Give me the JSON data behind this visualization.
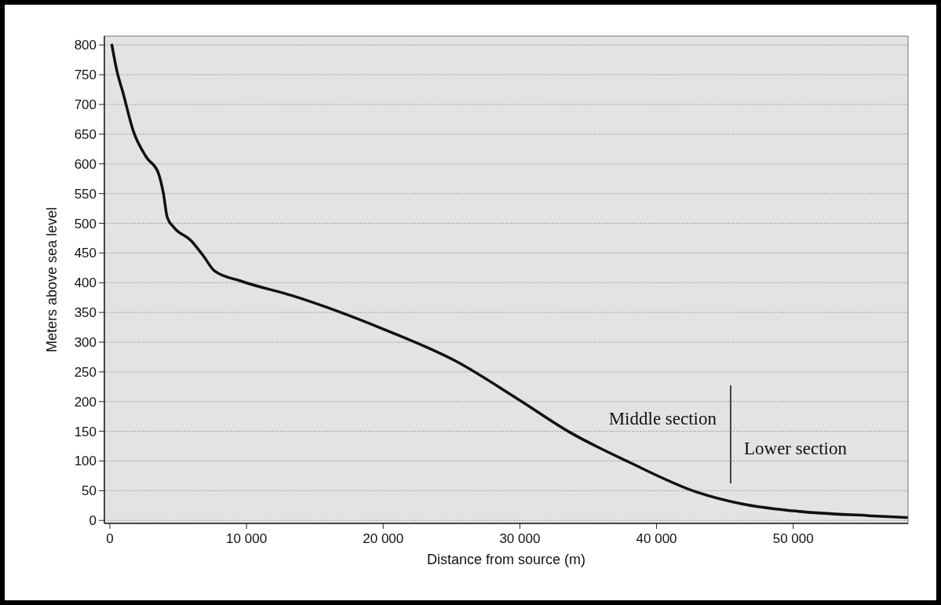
{
  "chart_data": {
    "type": "line",
    "xlabel": "Distance from source (m)",
    "ylabel": "Meters above sea level",
    "x": [
      150,
      500,
      960,
      1720,
      2680,
      3540,
      3920,
      4200,
      4690,
      5930,
      6880,
      7650,
      9560,
      13370,
      20000,
      25400,
      29800,
      33600,
      38000,
      42900,
      46200,
      50000,
      55500,
      58300
    ],
    "series": [
      {
        "color": "#111111",
        "values": [
          800,
          758,
          720,
          655,
          611,
          585,
          550,
          510,
          493,
          471,
          444,
          420,
          403,
          378,
          322,
          267,
          205,
          149,
          98,
          48,
          28,
          16,
          8,
          5
        ]
      }
    ],
    "xlim": [
      -400,
      58400
    ],
    "xticks": [
      {
        "value": 0,
        "label": "0"
      },
      {
        "value": 10000,
        "label": "10 000"
      },
      {
        "value": 20000,
        "label": "20 000"
      },
      {
        "value": 30000,
        "label": "30 000"
      },
      {
        "value": 40000,
        "label": "40 000"
      },
      {
        "value": 50000,
        "label": "50 000"
      }
    ],
    "ylim": [
      -5,
      815
    ],
    "yticks": [
      0,
      50,
      100,
      150,
      200,
      250,
      300,
      350,
      400,
      450,
      500,
      550,
      600,
      650,
      700,
      750,
      800
    ],
    "grid": "y",
    "marker": "none",
    "line_style": "solid",
    "annotations": [
      "Middle section",
      "Lower section"
    ]
  }
}
